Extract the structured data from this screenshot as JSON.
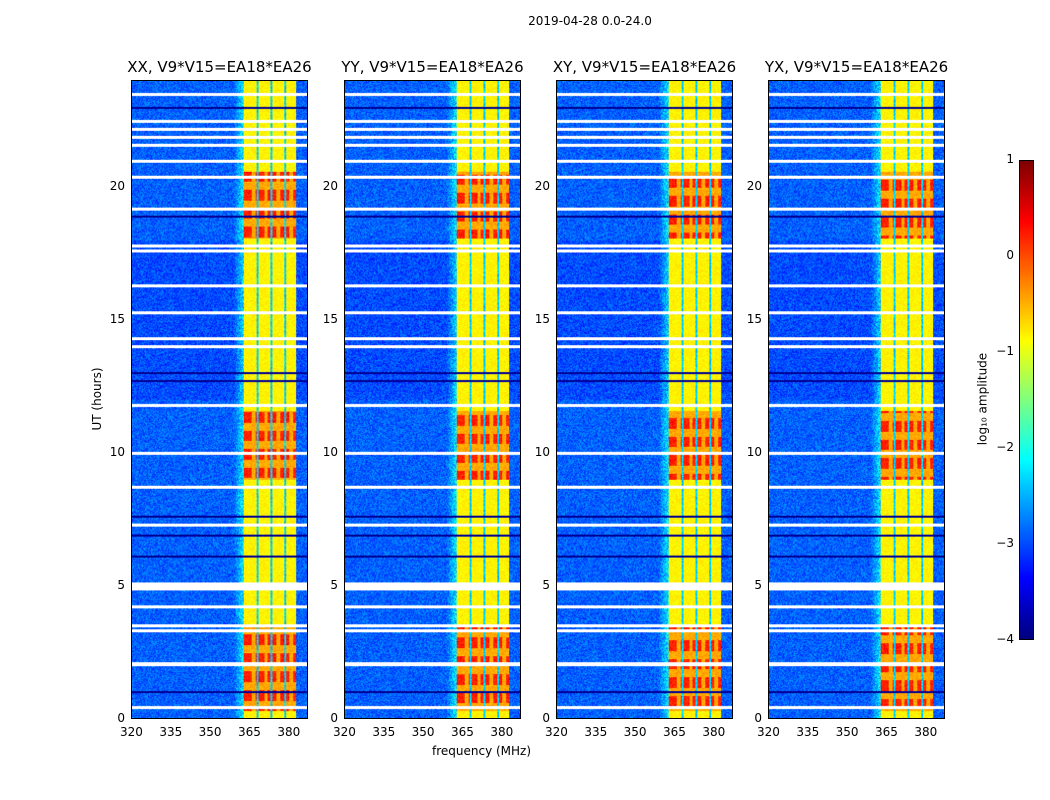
{
  "suptitle": "2019-04-28 0.0-24.0",
  "chart_data": {
    "type": "heatmap",
    "xlabel": "frequency (MHz)",
    "ylabel": "UT (hours)",
    "xlim": [
      320,
      387.5
    ],
    "ylim": [
      0,
      24
    ],
    "xticks": [
      "320",
      "335",
      "350",
      "365",
      "380"
    ],
    "xtick_values": [
      320,
      335,
      350,
      365,
      380
    ],
    "yticks": [
      "0",
      "5",
      "10",
      "15",
      "20"
    ],
    "ytick_values": [
      0,
      5,
      10,
      15,
      20
    ],
    "panels": [
      {
        "title": "XX, V9*V15=EA18*EA26",
        "seed": 1
      },
      {
        "title": "YY, V9*V15=EA18*EA26",
        "seed": 2
      },
      {
        "title": "XY, V9*V15=EA18*EA26",
        "seed": 3
      },
      {
        "title": "YX, V9*V15=EA18*EA26",
        "seed": 4
      }
    ],
    "band_mhz": [
      363,
      383
    ],
    "band_gaps_mhz": [
      368.2,
      373.5,
      378.8
    ],
    "strong_periods_hours": [
      [
        0.3,
        3.5
      ],
      [
        9.0,
        11.6
      ],
      [
        18.1,
        20.6
      ]
    ],
    "flagged_hours": [
      0.4,
      2.05,
      3.3,
      3.5,
      4.2,
      4.9,
      5.05,
      7.3,
      8.7,
      10.0,
      11.8,
      14.0,
      14.3,
      15.3,
      16.3,
      17.6,
      17.8,
      19.2,
      20.4,
      21.0,
      21.6,
      21.9,
      22.2,
      22.5,
      23.5
    ],
    "dark_rows_hours": [
      1.0,
      6.1,
      6.9,
      7.6,
      12.7,
      13.0,
      18.9,
      23.0
    ],
    "colorbar": {
      "label": "log₁₀ amplitude",
      "range": [
        -4,
        1
      ],
      "ticks": [
        "1",
        "0",
        "−1",
        "−2",
        "−3",
        "−4"
      ],
      "tick_values": [
        1,
        0,
        -1,
        -2,
        -3,
        -4
      ],
      "colormap": "jet"
    }
  }
}
